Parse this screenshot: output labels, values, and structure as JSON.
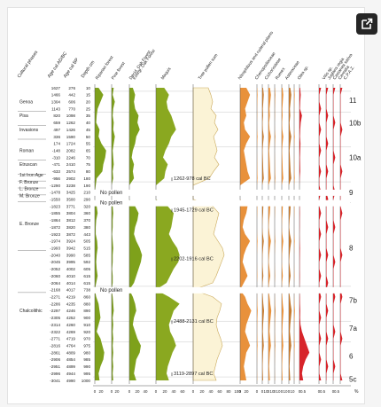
{
  "chart_data": {
    "type": "pollen-diagram",
    "headers": {
      "left": [
        "Cultural phases",
        "Age cal AD/BC",
        "Age cal BP",
        "Depth cm"
      ],
      "taxa": [
        "Riparian forest",
        "Pine forest",
        "Decid. Oak Forest / Evergr. Oak Forest",
        "Maquis",
        "Tree pollen sum",
        "Nitrophilous and ruderal plants",
        "Chenopodiaceae",
        "Cichoriodeae",
        "Rumex",
        "Asteraceae",
        "Olea sp.",
        "Vitis sp.",
        "Juglans regia",
        "Castanea sativa",
        "Cerealia",
        "C.P.A.Z."
      ]
    },
    "cultural_phases": [
      "Genoa",
      "Pisa",
      "Invasions",
      "Roman",
      "Etruscan",
      "1st Iron Age",
      "F. Bronze",
      "L. Bronze",
      "M. Bronze",
      "E. Bronze",
      "Chalcolithic"
    ],
    "rows": [
      {
        "ad_bc": "1627",
        "bp": "276",
        "depth": "10"
      },
      {
        "ad_bc": "1466",
        "bp": "442",
        "depth": "15"
      },
      {
        "ad_bc": "1304",
        "bp": "606",
        "depth": "20"
      },
      {
        "ad_bc": "1143",
        "bp": "770",
        "depth": "25"
      },
      {
        "ad_bc": "820",
        "bp": "1098",
        "depth": "35"
      },
      {
        "ad_bc": "659",
        "bp": "1262",
        "depth": "40"
      },
      {
        "ad_bc": "497",
        "bp": "1426",
        "depth": "45"
      },
      {
        "ad_bc": "336",
        "bp": "1590",
        "depth": "50"
      },
      {
        "ad_bc": "174",
        "bp": "1724",
        "depth": "55"
      },
      {
        "ad_bc": "-148",
        "bp": "2082",
        "depth": "65"
      },
      {
        "ad_bc": "-310",
        "bp": "2246",
        "depth": "70"
      },
      {
        "ad_bc": "-471",
        "bp": "2410",
        "depth": "75"
      },
      {
        "ad_bc": "-633",
        "bp": "2574",
        "depth": "80"
      },
      {
        "ad_bc": "-956",
        "bp": "2902",
        "depth": "180"
      },
      {
        "ad_bc": "-1290",
        "bp": "3238",
        "depth": "190"
      },
      {
        "ad_bc": "-1478",
        "bp": "3425",
        "depth": "210"
      },
      {
        "ad_bc": "-1550",
        "bp": "3500",
        "depth": "290"
      },
      {
        "ad_bc": "-1823",
        "bp": "3771",
        "depth": "320"
      },
      {
        "ad_bc": "-1855",
        "bp": "3804",
        "depth": "360"
      },
      {
        "ad_bc": "-1864",
        "bp": "3812",
        "depth": "370"
      },
      {
        "ad_bc": "-1872",
        "bp": "3820",
        "depth": "380"
      },
      {
        "ad_bc": "-1923",
        "bp": "3872",
        "depth": "443"
      },
      {
        "ad_bc": "-1974",
        "bp": "3924",
        "depth": "505"
      },
      {
        "ad_bc": "-1993",
        "bp": "3942",
        "depth": "515"
      },
      {
        "ad_bc": "-2040",
        "bp": "3990",
        "depth": "585"
      },
      {
        "ad_bc": "-2045",
        "bp": "3995",
        "depth": "592"
      },
      {
        "ad_bc": "-2052",
        "bp": "4002",
        "depth": "605"
      },
      {
        "ad_bc": "-2060",
        "bp": "4010",
        "depth": "615"
      },
      {
        "ad_bc": "-2064",
        "bp": "4014",
        "depth": "615"
      },
      {
        "ad_bc": "-2168",
        "bp": "4017",
        "depth": "738"
      },
      {
        "ad_bc": "-2271",
        "bp": "4219",
        "depth": "860"
      },
      {
        "ad_bc": "-2286",
        "bp": "4235",
        "depth": "880"
      },
      {
        "ad_bc": "-2297",
        "bp": "4246",
        "depth": "890"
      },
      {
        "ad_bc": "-2305",
        "bp": "4252",
        "depth": "900"
      },
      {
        "ad_bc": "-2314",
        "bp": "4260",
        "depth": "910"
      },
      {
        "ad_bc": "-2322",
        "bp": "4269",
        "depth": "920"
      },
      {
        "ad_bc": "-2771",
        "bp": "4719",
        "depth": "970"
      },
      {
        "ad_bc": "-2816",
        "bp": "4764",
        "depth": "975"
      },
      {
        "ad_bc": "-2861",
        "bp": "4809",
        "depth": "980"
      },
      {
        "ad_bc": "-2906",
        "bp": "4854",
        "depth": "985"
      },
      {
        "ad_bc": "-2951",
        "bp": "4899",
        "depth": "990"
      },
      {
        "ad_bc": "-2996",
        "bp": "4944",
        "depth": "995"
      },
      {
        "ad_bc": "-3041",
        "bp": "4990",
        "depth": "1000"
      }
    ],
    "no_pollen_labels": [
      "No pollen",
      "No pollen",
      "No pollen"
    ],
    "dates": [
      "1262-978 cal BC",
      "1945-1729 cal BC",
      "2202-1916 cal BC",
      "2488-2131 cal BC",
      "3119-2897 cal BC"
    ],
    "zones": [
      "11",
      "10b",
      "10a",
      "9",
      "8",
      "7b",
      "7a",
      "6",
      "5c"
    ],
    "x_axis": {
      "ticks": [
        "0",
        "20",
        "0",
        "20",
        "0",
        "20",
        "40",
        "0",
        "20",
        "40",
        "60",
        "0",
        "20",
        "40",
        "60",
        "80",
        "100",
        "0",
        "20",
        "0",
        "0",
        "10",
        "0",
        "10",
        "0",
        "10",
        "0",
        "10",
        "0",
        "10",
        "0",
        "0.5",
        "0",
        "0.5",
        "0",
        "0.5"
      ],
      "unit": "%"
    },
    "profiles": {
      "riparian": [
        8,
        18,
        12,
        6,
        4,
        3,
        10,
        8,
        14,
        24,
        22,
        18,
        16,
        4,
        2,
        0,
        0,
        4,
        6,
        3,
        2,
        2,
        5,
        6,
        4,
        3,
        4,
        6,
        3,
        0,
        3,
        8,
        10,
        12,
        8,
        4,
        12,
        16,
        20,
        18,
        12,
        8,
        10
      ],
      "pine": [
        4,
        2,
        6,
        3,
        2,
        4,
        3,
        6,
        4,
        2,
        3,
        4,
        2,
        3,
        0,
        0,
        0,
        2,
        3,
        2,
        2,
        1,
        2,
        3,
        2,
        2,
        1,
        2,
        2,
        0,
        2,
        3,
        4,
        2,
        3,
        2,
        3,
        2,
        3,
        2,
        3,
        2,
        3
      ],
      "decid_oak": [
        6,
        10,
        8,
        10,
        16,
        14,
        18,
        12,
        10,
        6,
        4,
        8,
        6,
        8,
        0,
        0,
        0,
        10,
        16,
        14,
        10,
        8,
        12,
        18,
        22,
        20,
        16,
        12,
        8,
        0,
        6,
        10,
        12,
        8,
        6,
        10,
        14,
        20,
        18,
        12,
        10,
        8,
        12
      ],
      "maquis": [
        14,
        22,
        18,
        20,
        26,
        30,
        34,
        26,
        22,
        16,
        12,
        20,
        16,
        14,
        0,
        0,
        0,
        20,
        30,
        28,
        26,
        22,
        28,
        36,
        40,
        38,
        30,
        24,
        18,
        0,
        22,
        40,
        30,
        26,
        22,
        24,
        30,
        34,
        28,
        24,
        20,
        18,
        22
      ],
      "tree_sum": [
        34,
        40,
        44,
        40,
        52,
        48,
        56,
        46,
        50,
        54,
        48,
        58,
        46,
        36,
        0,
        0,
        0,
        44,
        58,
        54,
        50,
        46,
        56,
        66,
        70,
        64,
        58,
        52,
        44,
        0,
        44,
        64,
        60,
        54,
        52,
        56,
        62,
        66,
        60,
        54,
        50,
        46,
        52
      ],
      "nitrophilous": [
        10,
        16,
        12,
        8,
        10,
        6,
        8,
        16,
        10,
        6,
        8,
        10,
        12,
        16,
        0,
        0,
        0,
        12,
        10,
        6,
        4,
        8,
        16,
        10,
        6,
        4,
        8,
        12,
        6,
        0,
        8,
        12,
        18,
        14,
        10,
        8,
        12,
        16,
        10,
        8,
        6,
        8,
        10
      ],
      "olea": [
        0.5,
        1,
        0.6,
        0.4,
        2,
        1,
        0.6,
        0.4,
        0.8,
        0.6,
        0.4,
        0.5,
        0.6,
        0.2,
        0,
        0,
        0,
        0.2,
        0.3,
        0.2,
        0.2,
        0.1,
        0.2,
        0.4,
        0.3,
        0.2,
        0.2,
        0.3,
        0.2,
        0,
        0.3,
        0.4,
        0.6,
        0.5,
        0.8,
        2,
        4,
        6,
        8,
        5,
        3,
        2,
        3
      ]
    },
    "colors": {
      "riparian": "#7ea11b",
      "pine": "#7ea11b",
      "decid_oak": "#7ea11b",
      "maquis": "#8aa820",
      "tree_sum": "#fbf3d6",
      "tree_sum_line": "#caa95a",
      "herbs": "#e8913b",
      "olea": "#d7242a"
    }
  }
}
